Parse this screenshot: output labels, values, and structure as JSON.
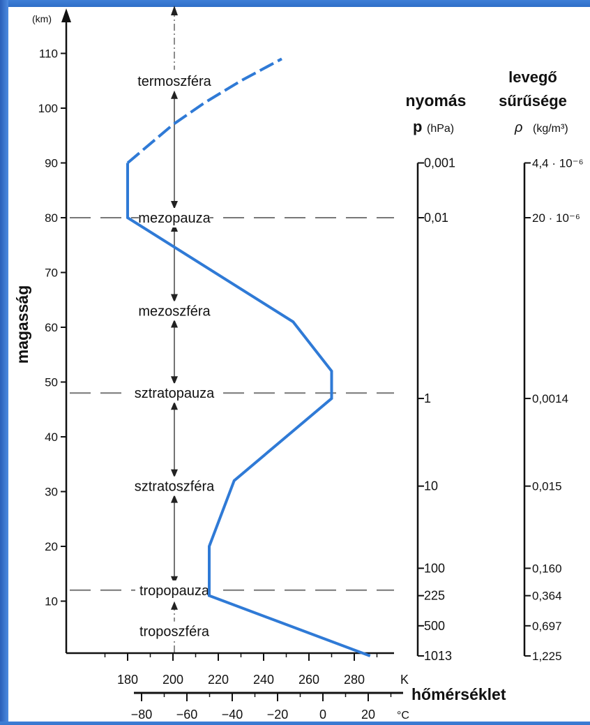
{
  "chart_data": {
    "type": "line",
    "title": "",
    "ylabel": "magasság",
    "y_unit": "(km)",
    "ylim": [
      0,
      116
    ],
    "y_ticks": [
      10,
      20,
      30,
      40,
      50,
      60,
      70,
      80,
      90,
      100,
      110
    ],
    "xlabel": "hőmérséklet",
    "x_unit": "K",
    "xlim_K": [
      160,
      295
    ],
    "x_ticks_K": [
      180,
      200,
      220,
      240,
      260,
      280
    ],
    "x_unit_C": "°C",
    "x_ticks_C": [
      -80,
      -60,
      -40,
      -20,
      0,
      20
    ],
    "temperature_profile": [
      {
        "t": 287,
        "h": 0
      },
      {
        "t": 216,
        "h": 11
      },
      {
        "t": 216,
        "h": 20
      },
      {
        "t": 227,
        "h": 32
      },
      {
        "t": 270,
        "h": 47
      },
      {
        "t": 270,
        "h": 52
      },
      {
        "t": 253,
        "h": 61
      },
      {
        "t": 180,
        "h": 80
      },
      {
        "t": 180,
        "h": 90
      }
    ],
    "temperature_profile_dashed": [
      {
        "t": 180,
        "h": 90
      },
      {
        "t": 200,
        "h": 97
      },
      {
        "t": 214,
        "h": 101
      },
      {
        "t": 230,
        "h": 105
      },
      {
        "t": 248,
        "h": 109
      }
    ],
    "layers": [
      {
        "label": "termoszféra",
        "h": 105
      },
      {
        "label": "mezopauza",
        "h": 80
      },
      {
        "label": "mezoszféra",
        "h": 63
      },
      {
        "label": "sztratopauza",
        "h": 48
      },
      {
        "label": "sztratoszféra",
        "h": 31
      },
      {
        "label": "tropopauza",
        "h": 12
      },
      {
        "label": "troposzféra",
        "h": 4.5
      }
    ],
    "boundaries_km": [
      80,
      48,
      12
    ],
    "pressure": {
      "title": "nyomás",
      "symbol": "p",
      "unit": "(hPa)",
      "ticks": [
        {
          "h": 90,
          "label": "0,001"
        },
        {
          "h": 80,
          "label": "0,01"
        },
        {
          "h": 47,
          "label": "1"
        },
        {
          "h": 31,
          "label": "10"
        },
        {
          "h": 16,
          "label": "100"
        },
        {
          "h": 11,
          "label": "225"
        },
        {
          "h": 5.5,
          "label": "500"
        },
        {
          "h": 0,
          "label": "1013"
        }
      ]
    },
    "density": {
      "title_line1": "levegő",
      "title_line2": "sűrűsége",
      "symbol": "ρ",
      "unit": "(kg/m³)",
      "ticks": [
        {
          "h": 90,
          "label": "4,4 · 10⁻⁶"
        },
        {
          "h": 80,
          "label": "20 · 10⁻⁶"
        },
        {
          "h": 47,
          "label": "0,0014"
        },
        {
          "h": 31,
          "label": "0,015"
        },
        {
          "h": 16,
          "label": "0,160"
        },
        {
          "h": 11,
          "label": "0,364"
        },
        {
          "h": 5.5,
          "label": "0,697"
        },
        {
          "h": 0,
          "label": "1,225"
        }
      ]
    },
    "line_color": "#2f7ad6",
    "grid": false
  }
}
